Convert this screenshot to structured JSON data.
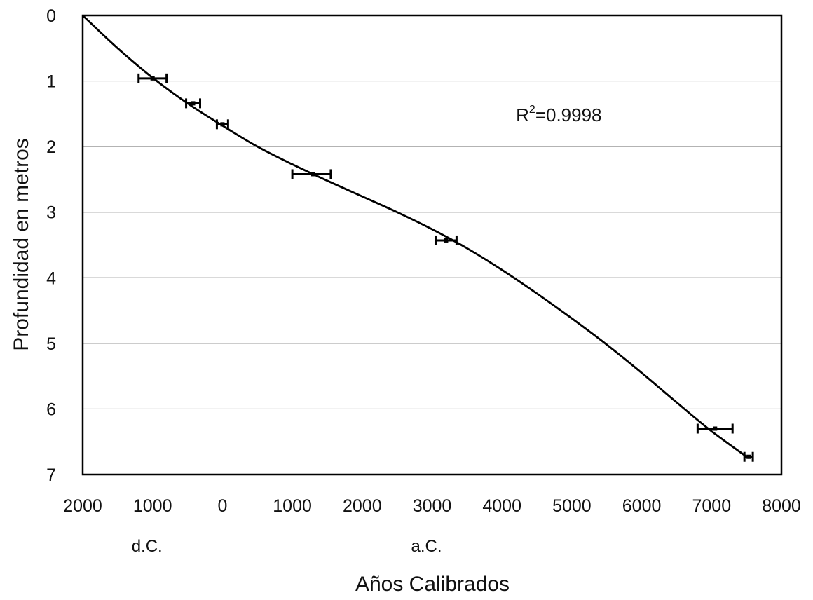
{
  "chart_data": {
    "type": "scatter",
    "title": "",
    "xlabel": "Años Calibrados",
    "ylabel": "Profundidad en metros",
    "x_ticks": [
      {
        "value": -2000,
        "label": "2000"
      },
      {
        "value": -1000,
        "label": "1000"
      },
      {
        "value": 0,
        "label": "0"
      },
      {
        "value": 1000,
        "label": "1000"
      },
      {
        "value": 2000,
        "label": "2000"
      },
      {
        "value": 3000,
        "label": "3000"
      },
      {
        "value": 4000,
        "label": "4000"
      },
      {
        "value": 5000,
        "label": "5000"
      },
      {
        "value": 6000,
        "label": "6000"
      },
      {
        "value": 7000,
        "label": "7000"
      },
      {
        "value": 8000,
        "label": "8000"
      }
    ],
    "y_ticks": [
      {
        "value": 0,
        "label": "0"
      },
      {
        "value": 1,
        "label": "1"
      },
      {
        "value": 2,
        "label": "2"
      },
      {
        "value": 3,
        "label": "3"
      },
      {
        "value": 4,
        "label": "4"
      },
      {
        "value": 5,
        "label": "5"
      },
      {
        "value": 6,
        "label": "6"
      },
      {
        "value": 7,
        "label": "7"
      }
    ],
    "era_labels": [
      {
        "text": "d.C.",
        "x": -1000
      },
      {
        "text": "a.C.",
        "x": 3000
      }
    ],
    "xlim": [
      -2000,
      8000
    ],
    "ylim": [
      0,
      7
    ],
    "y_inverted": true,
    "grid": "horizontal",
    "points": [
      {
        "x": -1000,
        "y": 0.96,
        "xmin": -1200,
        "xmax": -800
      },
      {
        "x": -420,
        "y": 1.34,
        "xmin": -520,
        "xmax": -320
      },
      {
        "x": 0,
        "y": 1.66,
        "xmin": -80,
        "xmax": 80
      },
      {
        "x": 1300,
        "y": 2.42,
        "xmin": 1000,
        "xmax": 1550
      },
      {
        "x": 3200,
        "y": 3.43,
        "xmin": 3050,
        "xmax": 3350
      },
      {
        "x": 7050,
        "y": 6.3,
        "xmin": 6800,
        "xmax": 7300
      },
      {
        "x": 7530,
        "y": 6.73,
        "xmin": 7470,
        "xmax": 7590
      }
    ],
    "fit_curve": [
      {
        "x": -2000,
        "y": 0
      },
      {
        "x": -1500,
        "y": 0.5
      },
      {
        "x": -1000,
        "y": 0.95
      },
      {
        "x": -500,
        "y": 1.34
      },
      {
        "x": 0,
        "y": 1.68
      },
      {
        "x": 500,
        "y": 2.0
      },
      {
        "x": 1000,
        "y": 2.27
      },
      {
        "x": 1500,
        "y": 2.52
      },
      {
        "x": 2000,
        "y": 2.76
      },
      {
        "x": 2500,
        "y": 3.0
      },
      {
        "x": 3000,
        "y": 3.26
      },
      {
        "x": 3500,
        "y": 3.55
      },
      {
        "x": 4000,
        "y": 3.88
      },
      {
        "x": 4500,
        "y": 4.24
      },
      {
        "x": 5000,
        "y": 4.62
      },
      {
        "x": 5500,
        "y": 5.02
      },
      {
        "x": 6000,
        "y": 5.45
      },
      {
        "x": 6500,
        "y": 5.9
      },
      {
        "x": 7000,
        "y": 6.34
      },
      {
        "x": 7530,
        "y": 6.75
      }
    ],
    "annotation": {
      "base": "R",
      "superscript": "2",
      "value": "=0.9998",
      "x": 4200,
      "y": 1.55
    }
  }
}
